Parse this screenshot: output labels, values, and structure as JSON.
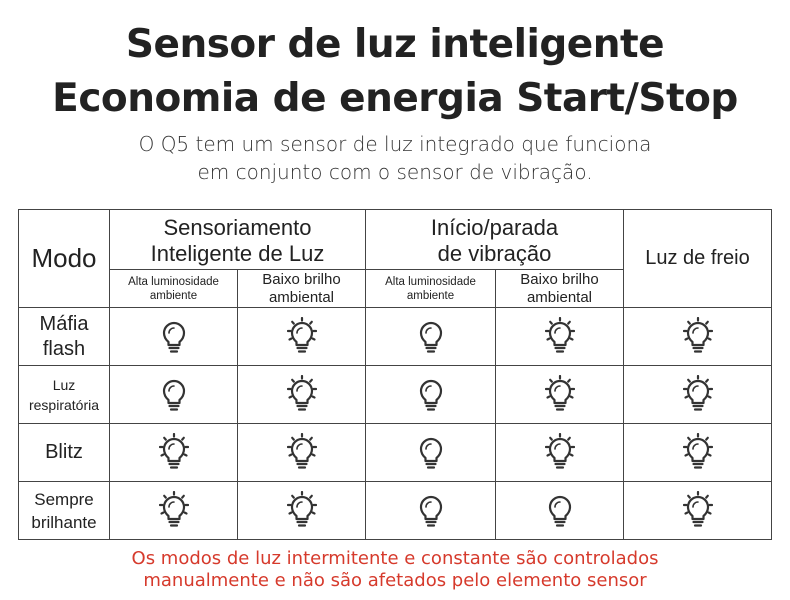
{
  "title": {
    "line1": "Sensor de luz inteligente",
    "line2": "Economia de energia Start/Stop"
  },
  "subtitle": {
    "line1": "O Q5 tem um sensor de luz integrado que funciona",
    "line2": "em conjunto com o sensor de vibração."
  },
  "table": {
    "mode_header": "Modo",
    "group1": {
      "line1": "Sensoriamento",
      "line2": "Inteligente de Luz"
    },
    "group2": {
      "line1": "Início/parada",
      "line2": "de vibração"
    },
    "brake_header": "Luz de freio",
    "sub_high": {
      "line1": "Alta luminosidade",
      "line2": "ambiente"
    },
    "sub_low": {
      "line1": "Baixo brilho",
      "line2": "ambiental"
    },
    "rows": [
      {
        "label1": "Máfia",
        "label2": "flash",
        "icons": [
          "off",
          "on",
          "off",
          "on",
          "on"
        ]
      },
      {
        "label1": "Luz",
        "label2": "respiratória",
        "icons": [
          "off",
          "on",
          "off",
          "on",
          "on"
        ]
      },
      {
        "label1": "Blitz",
        "label2": "",
        "icons": [
          "on",
          "on",
          "off",
          "on",
          "on"
        ]
      },
      {
        "label1": "Sempre",
        "label2": "brilhante",
        "icons": [
          "on",
          "on",
          "off",
          "off",
          "on"
        ]
      }
    ]
  },
  "icon_names": {
    "on": "bulb-lit-icon",
    "off": "bulb-off-icon"
  },
  "colors": {
    "note": "#d63a2c",
    "text": "#222222",
    "border": "#444444"
  },
  "note": {
    "line1": "Os modos de luz intermitente e constante são controlados",
    "line2": "manualmente e não são afetados pelo elemento sensor"
  }
}
